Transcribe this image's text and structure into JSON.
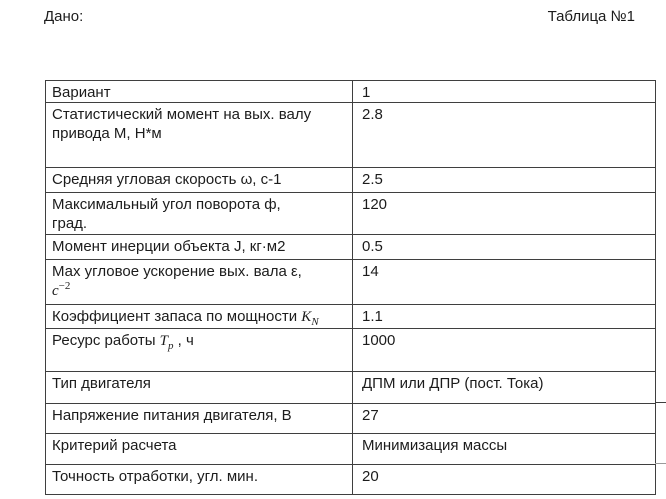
{
  "header": {
    "given_label": "Дано:",
    "table_caption": "Таблица №1"
  },
  "table": {
    "rows": [
      {
        "name": "variant",
        "label_parts": [
          {
            "t": "text",
            "v": "Вариант"
          }
        ],
        "value": "1"
      },
      {
        "name": "static-moment",
        "label_parts": [
          {
            "t": "text",
            "v": "Статистический момент на вых. валу"
          },
          {
            "t": "br"
          },
          {
            "t": "text",
            "v": "привода М, Н*м"
          }
        ],
        "value": "2.8"
      },
      {
        "name": "avg-angular-speed",
        "label_parts": [
          {
            "t": "text",
            "v": "Средняя угловая скорость ω, с-1"
          }
        ],
        "value": "2.5"
      },
      {
        "name": "max-rotation-angle",
        "label_parts": [
          {
            "t": "text",
            "v": "Максимальный угол поворота ф,"
          },
          {
            "t": "br"
          },
          {
            "t": "text",
            "v": "град."
          }
        ],
        "value": "120"
      },
      {
        "name": "inertia-moment",
        "label_parts": [
          {
            "t": "text",
            "v": "Момент инерции  объекта  J, кг·м2"
          }
        ],
        "value": "0.5"
      },
      {
        "name": "max-angular-accel",
        "label_parts": [
          {
            "t": "text",
            "v": "Мах угловое ускорение  вых. вала ε,"
          },
          {
            "t": "br"
          },
          {
            "t": "math",
            "v": "с"
          },
          {
            "t": "sup",
            "v": "−2"
          }
        ],
        "value": "14"
      },
      {
        "name": "power-margin-coeff",
        "label_parts": [
          {
            "t": "text",
            "v": "Коэффициент запаса по мощности "
          },
          {
            "t": "math",
            "v": "K"
          },
          {
            "t": "sub",
            "v": "N"
          }
        ],
        "value": "1.1"
      },
      {
        "name": "service-life",
        "label_parts": [
          {
            "t": "text",
            "v": "Ресурс работы "
          },
          {
            "t": "math",
            "v": "T"
          },
          {
            "t": "sub",
            "v": "p"
          },
          {
            "t": "text",
            "v": " , ч"
          }
        ],
        "value": "1000"
      },
      {
        "name": "motor-type",
        "label_parts": [
          {
            "t": "text",
            "v": "Тип двигателя"
          }
        ],
        "value": "ДПМ или ДПР (пост. Тока)"
      },
      {
        "name": "supply-voltage",
        "label_parts": [
          {
            "t": "text",
            "v": "Напряжение питания двигателя, В"
          }
        ],
        "value": "27"
      },
      {
        "name": "design-criterion",
        "label_parts": [
          {
            "t": "text",
            "v": "Критерий расчета"
          }
        ],
        "value": "Минимизация массы"
      },
      {
        "name": "tracking-accuracy",
        "label_parts": [
          {
            "t": "text",
            "v": "Точность отработки, угл. мин."
          }
        ],
        "value": "20"
      }
    ]
  },
  "colors": {
    "background": "#ffffff",
    "text": "#1c1c1c",
    "border": "#3f3f3f"
  }
}
